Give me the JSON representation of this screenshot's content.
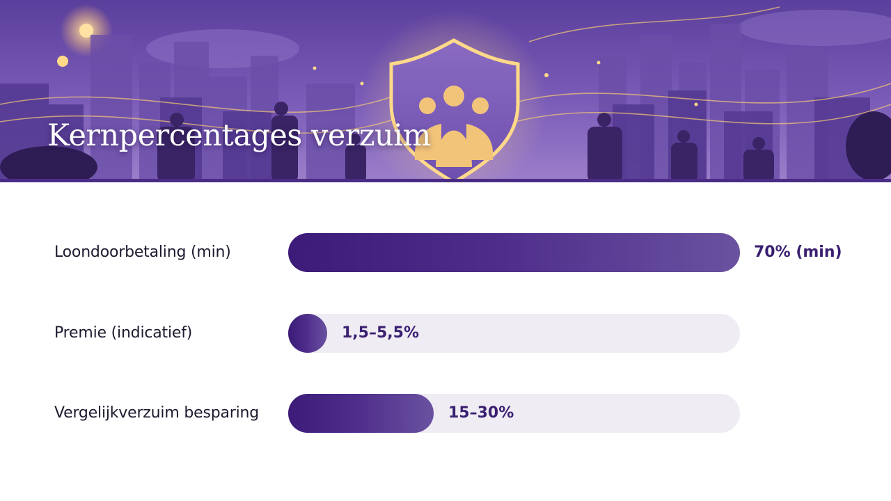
{
  "slide": {
    "title": "Kernpercentages verzuim"
  },
  "banner": {
    "illustration": "city-skyline-with-shield-and-people-icon",
    "accent_color": "#4a2c86"
  },
  "chart_data": {
    "type": "bar",
    "orientation": "horizontal",
    "categories": [
      "Loondoorbetaling (min)",
      "Premie (indicatief)",
      "Vergelijkverzuim besparing"
    ],
    "values": [
      70,
      3.5,
      22.5
    ],
    "value_ranges": [
      [
        70,
        70
      ],
      [
        1.5,
        5.5
      ],
      [
        15,
        30
      ]
    ],
    "value_labels": [
      "70% (min)",
      "1,5–5,5%",
      "15–30%"
    ],
    "xlim": [
      0,
      70
    ],
    "unit": "%",
    "grid": false,
    "legend": "none",
    "colors": {
      "bar_start": "#3c1c78",
      "bar_end": "#6a52a0",
      "track": "#efecf4",
      "label": "#1d1a2e",
      "value": "#3a1f70"
    }
  }
}
